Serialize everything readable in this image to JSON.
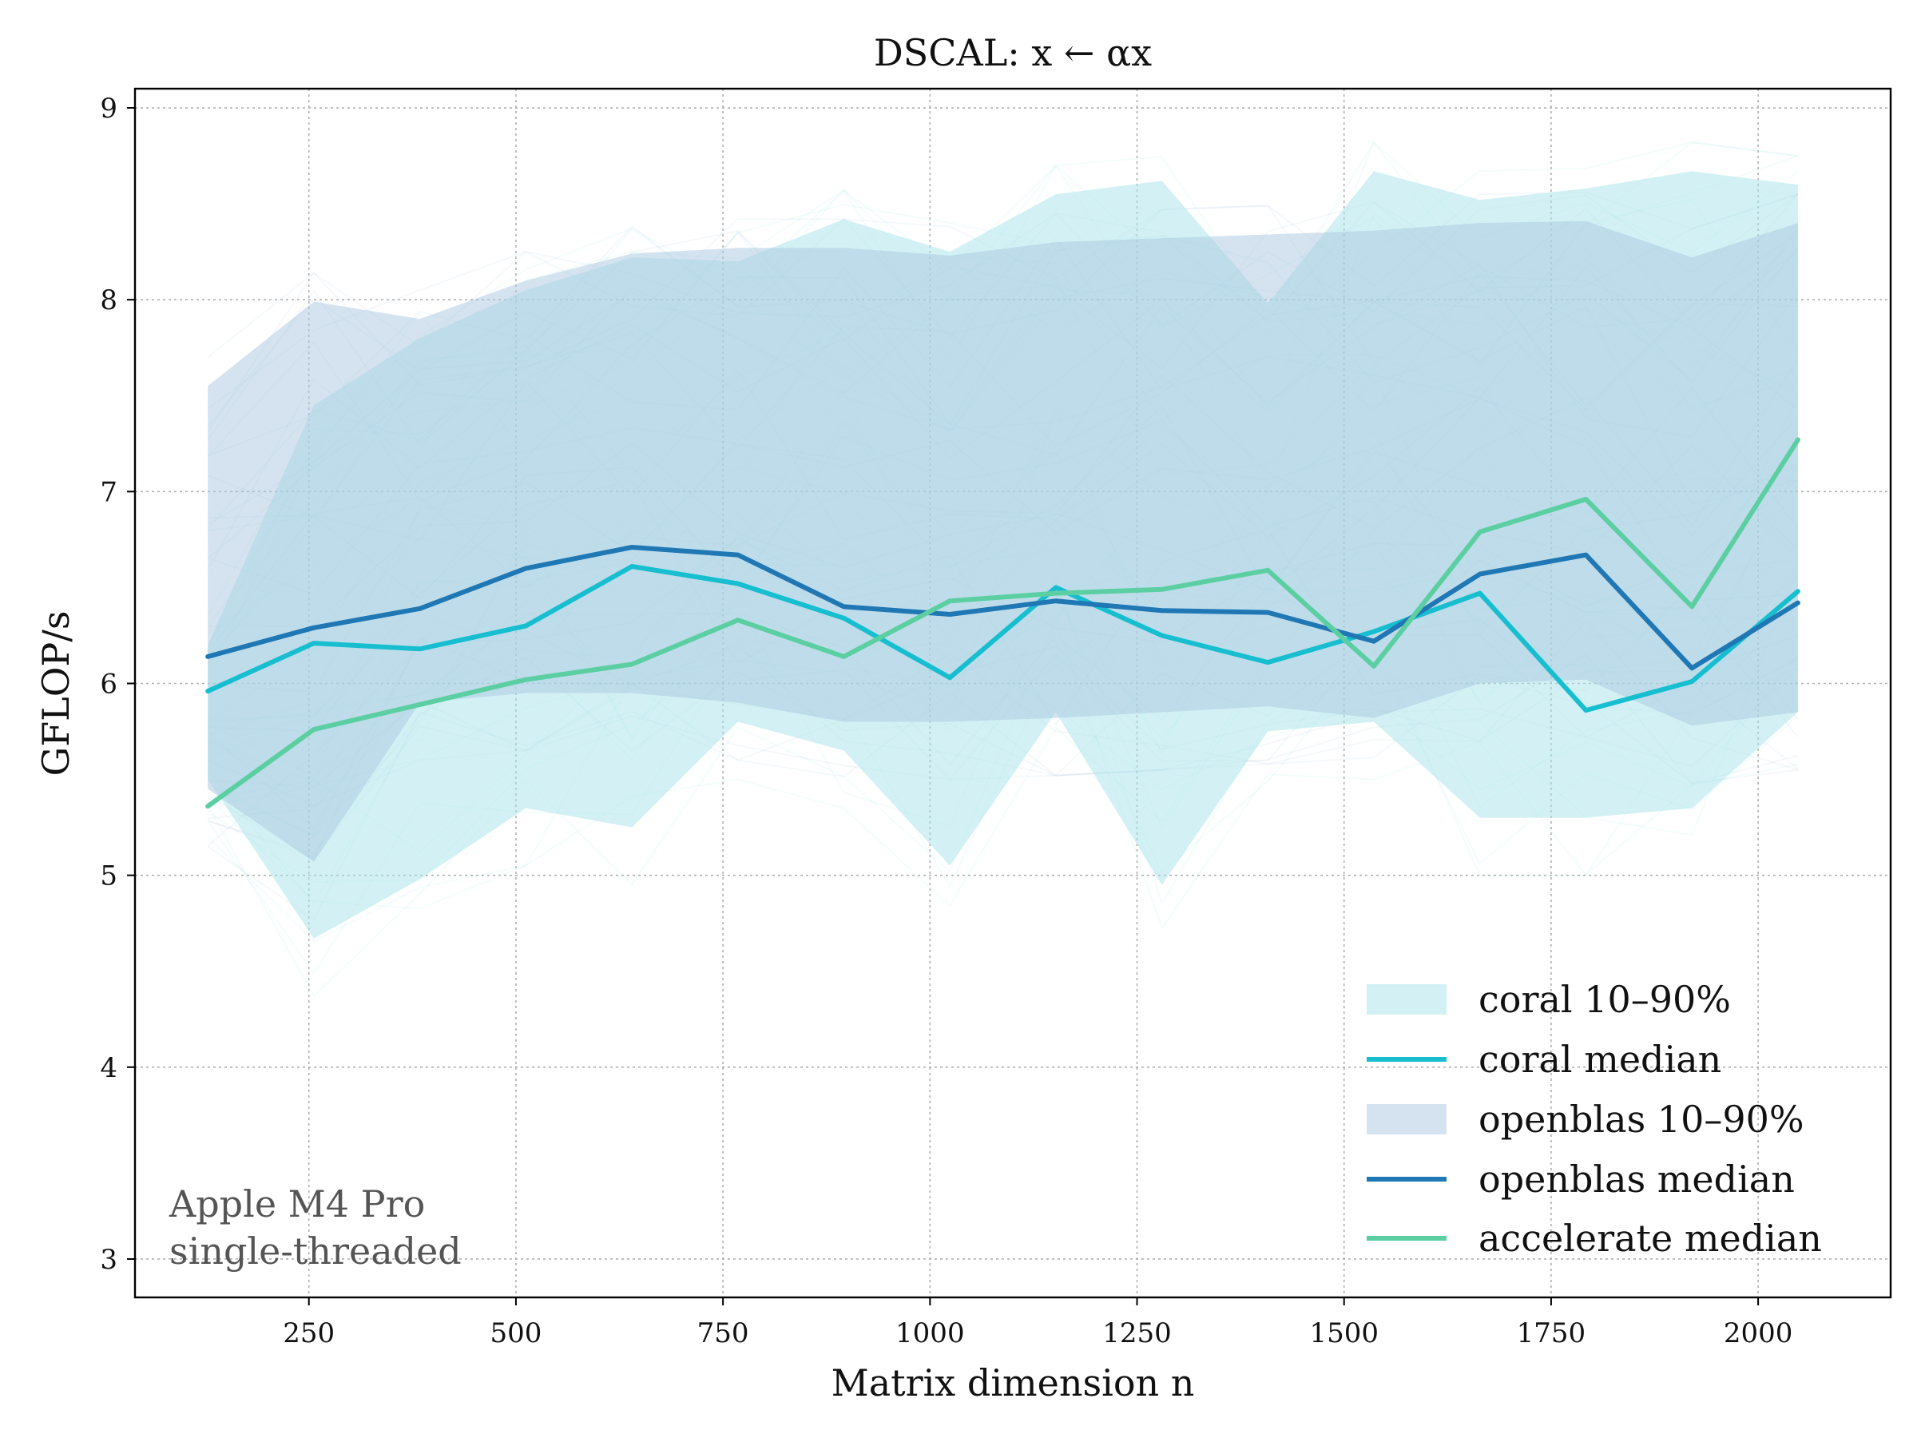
{
  "chart_data": {
    "type": "line",
    "title": "DSCAL: x ← αx",
    "xlabel": "Matrix dimension n",
    "ylabel": "GFLOP/s",
    "xlim": [
      40,
      2160
    ],
    "ylim": [
      2.8,
      9.1
    ],
    "x_ticks": [
      250,
      500,
      750,
      1000,
      1250,
      1500,
      1750,
      2000
    ],
    "y_ticks": [
      3,
      4,
      5,
      6,
      7,
      8,
      9
    ],
    "grid": true,
    "legend_position": "bottom-right",
    "x": [
      128,
      256,
      384,
      512,
      640,
      768,
      896,
      1024,
      1152,
      1280,
      1408,
      1536,
      1664,
      1792,
      1920,
      2048
    ],
    "bands": [
      {
        "name": "coral 10–90%",
        "color": "#a8e4ea",
        "lower": [
          5.5,
          4.67,
          4.98,
          5.35,
          5.25,
          5.8,
          5.65,
          5.05,
          5.85,
          4.95,
          5.75,
          5.8,
          5.3,
          5.3,
          5.35,
          5.85
        ],
        "upper": [
          6.2,
          7.45,
          7.8,
          8.05,
          8.22,
          8.2,
          8.42,
          8.25,
          8.55,
          8.62,
          7.98,
          8.67,
          8.52,
          8.58,
          8.67,
          8.6
        ]
      },
      {
        "name": "openblas 10–90%",
        "color": "#a9c7e0",
        "lower": [
          5.45,
          5.07,
          5.9,
          5.95,
          5.95,
          5.9,
          5.8,
          5.8,
          5.82,
          5.85,
          5.88,
          5.82,
          6.0,
          6.02,
          5.78,
          5.85
        ],
        "upper": [
          7.55,
          7.99,
          7.9,
          8.1,
          8.24,
          8.27,
          8.27,
          8.23,
          8.3,
          8.32,
          8.34,
          8.36,
          8.4,
          8.41,
          8.22,
          8.4
        ]
      }
    ],
    "series": [
      {
        "name": "coral median",
        "color": "#17becf",
        "values": [
          5.96,
          6.21,
          6.18,
          6.3,
          6.61,
          6.52,
          6.34,
          6.03,
          6.5,
          6.25,
          6.11,
          6.27,
          6.47,
          5.86,
          6.01,
          6.48
        ]
      },
      {
        "name": "openblas median",
        "color": "#1f77b4",
        "values": [
          6.14,
          6.29,
          6.39,
          6.6,
          6.71,
          6.67,
          6.4,
          6.36,
          6.43,
          6.38,
          6.37,
          6.22,
          6.57,
          6.67,
          6.08,
          6.42
        ]
      },
      {
        "name": "accelerate median",
        "color": "#5ccfa2",
        "values": [
          5.36,
          5.76,
          5.89,
          6.02,
          6.1,
          6.33,
          6.14,
          6.43,
          6.47,
          6.49,
          6.59,
          6.09,
          6.79,
          6.96,
          6.4,
          7.27
        ]
      }
    ],
    "annotations": [
      "Apple M4 Pro",
      "single-threaded"
    ]
  }
}
